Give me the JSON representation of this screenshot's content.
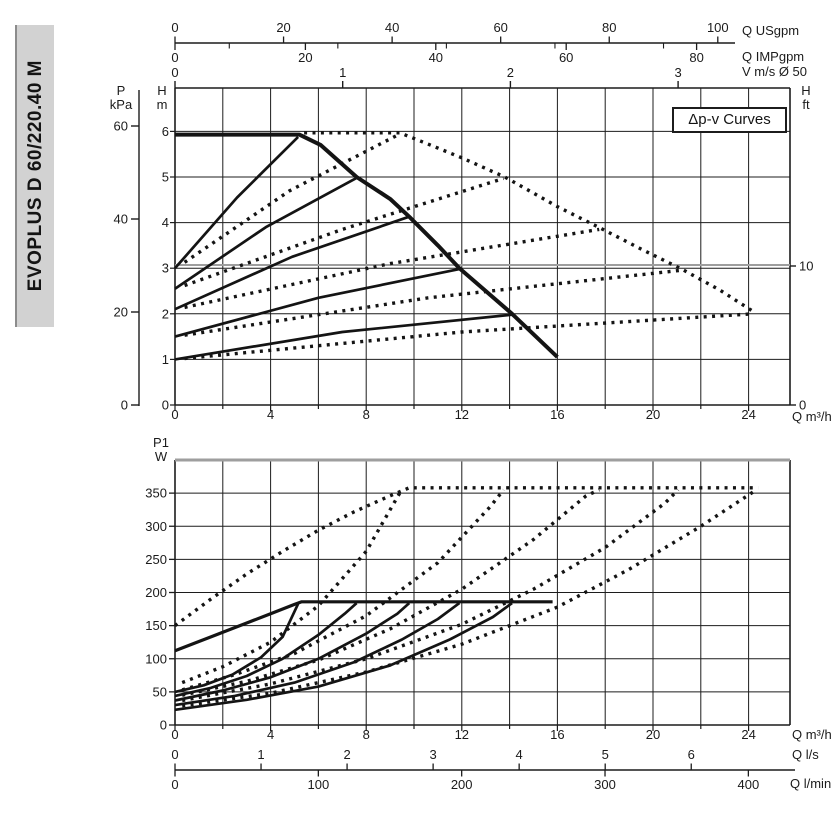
{
  "sidebar": {
    "label": "EVOPLUS D 60/220.40 M"
  },
  "top_chart": {
    "box_label": "Δp-v Curves",
    "pressure_axis_title_1": "P",
    "pressure_axis_title_2": "kPa",
    "head_axis_title_1": "H",
    "head_axis_title_2": "m",
    "right_axis_title_1": "H",
    "right_axis_title_2": "ft",
    "flow_axis_title": "Q m³/h",
    "usgpm_title": "Q USgpm",
    "impgpm_title": "Q IMPgpm",
    "velocity_title": "V m/s Ø 50"
  },
  "bottom_chart": {
    "power_axis_title_1": "P1",
    "power_axis_title_2": "W",
    "flow_axis_title": "Q m³/h",
    "ls_title": "Q l/s",
    "lmin_title": "Q l/min"
  },
  "chart_data": [
    {
      "type": "line",
      "name": "head-flow-curves",
      "title": "Δp-v Curves",
      "xlabel": "Q m³/h",
      "ylabel": "H m",
      "x_range": [
        0,
        25.7
      ],
      "y_range": [
        0,
        6.95
      ],
      "x_grid_step": 2,
      "x_ticks_labeled": [
        0,
        4,
        8,
        12,
        16,
        20,
        24
      ],
      "y_ticks": [
        0,
        1,
        2,
        3,
        4,
        5,
        6
      ],
      "kpa_ticks": [
        0,
        20,
        40,
        60
      ],
      "ft_ticks": [
        0,
        10
      ],
      "ft_line_h": 3.07,
      "usgpm_ticks": [
        0,
        20,
        40,
        60,
        80,
        100
      ],
      "usgpm_minor_ticks": [
        10,
        30,
        50,
        70,
        90
      ],
      "impgpm_ticks": [
        0,
        20,
        40,
        60,
        80
      ],
      "v_ticks": [
        0,
        1,
        2,
        3
      ],
      "series": [
        {
          "name": "max-curve-single",
          "style": "solid",
          "width": 4,
          "points": [
            [
              0,
              5.93
            ],
            [
              5.2,
              5.93
            ],
            [
              6.1,
              5.7
            ],
            [
              7.6,
              5.0
            ],
            [
              9.0,
              4.52
            ],
            [
              9.8,
              4.13
            ],
            [
              11.0,
              3.5
            ],
            [
              11.9,
              3.0
            ],
            [
              13.0,
              2.5
            ],
            [
              14.1,
              2.0
            ],
            [
              15.1,
              1.5
            ],
            [
              16,
              1.05
            ]
          ]
        },
        {
          "name": "dpv-setpoint-1-single",
          "style": "solid",
          "width": 2.7,
          "points": [
            [
              0,
              3.0
            ],
            [
              2.6,
              4.55
            ],
            [
              5.15,
              5.88
            ]
          ]
        },
        {
          "name": "dpv-setpoint-2-single",
          "style": "solid",
          "width": 2.7,
          "points": [
            [
              0,
              2.55
            ],
            [
              3.8,
              3.9
            ],
            [
              7.6,
              4.98
            ]
          ]
        },
        {
          "name": "dpv-setpoint-3-single",
          "style": "solid",
          "width": 2.7,
          "points": [
            [
              0,
              2.1
            ],
            [
              4.9,
              3.25
            ],
            [
              9.8,
              4.13
            ]
          ]
        },
        {
          "name": "dpv-setpoint-4-single",
          "style": "solid",
          "width": 2.7,
          "points": [
            [
              0,
              1.5
            ],
            [
              6,
              2.35
            ],
            [
              11.9,
              2.98
            ]
          ]
        },
        {
          "name": "dpv-setpoint-5-single",
          "style": "solid",
          "width": 2.7,
          "points": [
            [
              0,
              1.0
            ],
            [
              7,
              1.6
            ],
            [
              14.1,
              1.98
            ]
          ]
        },
        {
          "name": "max-curve-parallel",
          "style": "dotted",
          "width": 3.4,
          "points": [
            [
              5.4,
              5.97
            ],
            [
              9.4,
              5.97
            ],
            [
              10.6,
              5.72
            ],
            [
              12.0,
              5.42
            ],
            [
              13.8,
              5.0
            ],
            [
              16.0,
              4.35
            ],
            [
              17.8,
              3.88
            ],
            [
              19.5,
              3.42
            ],
            [
              21.2,
              2.98
            ],
            [
              22.8,
              2.52
            ],
            [
              24.25,
              2.03
            ]
          ]
        },
        {
          "name": "dpv-setpoint-1-parallel",
          "style": "dotted",
          "width": 3.4,
          "points": [
            [
              0.4,
              3.13
            ],
            [
              4.8,
              4.7
            ],
            [
              9.35,
              5.93
            ]
          ]
        },
        {
          "name": "dpv-setpoint-2-parallel",
          "style": "dotted",
          "width": 3.4,
          "points": [
            [
              0.4,
              2.62
            ],
            [
              7,
              3.85
            ],
            [
              13.75,
              4.97
            ]
          ]
        },
        {
          "name": "dpv-setpoint-3-parallel",
          "style": "dotted",
          "width": 3.4,
          "points": [
            [
              0.4,
              2.14
            ],
            [
              9,
              3.1
            ],
            [
              17.75,
              3.85
            ]
          ]
        },
        {
          "name": "dpv-setpoint-4-parallel",
          "style": "dotted",
          "width": 3.4,
          "points": [
            [
              0.4,
              1.53
            ],
            [
              10.6,
              2.35
            ],
            [
              21.1,
              2.95
            ]
          ]
        },
        {
          "name": "dpv-setpoint-5-parallel",
          "style": "dotted",
          "width": 3.4,
          "points": [
            [
              0.4,
              1.02
            ],
            [
              12,
              1.6
            ],
            [
              24.2,
              2.0
            ]
          ]
        }
      ]
    },
    {
      "type": "line",
      "name": "power-flow-curves",
      "xlabel": "Q m³/h",
      "ylabel": "P1 W",
      "x_range": [
        0,
        25.7
      ],
      "y_range": [
        0,
        400
      ],
      "x_grid_step": 2,
      "x_ticks_labeled": [
        0,
        4,
        8,
        12,
        16,
        20,
        24
      ],
      "y_ticks": [
        0,
        50,
        100,
        150,
        200,
        250,
        300,
        350
      ],
      "ls_ticks": [
        0,
        1,
        2,
        3,
        4,
        5,
        6
      ],
      "lmin_ticks": [
        0,
        100,
        200,
        300,
        400
      ],
      "series": [
        {
          "name": "power-max-single",
          "style": "solid",
          "width": 3.2,
          "points": [
            [
              0,
              112
            ],
            [
              1,
              126
            ],
            [
              2,
              140
            ],
            [
              3,
              154
            ],
            [
              4,
              168
            ],
            [
              5,
              182
            ],
            [
              5.3,
              186
            ],
            [
              15.8,
              186
            ]
          ]
        },
        {
          "name": "power-dpv-1-single",
          "style": "solid",
          "width": 2.7,
          "points": [
            [
              0,
              50
            ],
            [
              1.2,
              60
            ],
            [
              2.4,
              76
            ],
            [
              3.6,
              102
            ],
            [
              4.5,
              133
            ],
            [
              5.15,
              183
            ]
          ]
        },
        {
          "name": "power-dpv-2-single",
          "style": "solid",
          "width": 2.7,
          "points": [
            [
              0,
              44
            ],
            [
              1.5,
              56
            ],
            [
              3,
              74
            ],
            [
              4.5,
              100
            ],
            [
              6,
              136
            ],
            [
              7.1,
              168
            ],
            [
              7.6,
              184
            ]
          ]
        },
        {
          "name": "power-dpv-3-single",
          "style": "solid",
          "width": 2.7,
          "points": [
            [
              0,
              37
            ],
            [
              2,
              52
            ],
            [
              4,
              72
            ],
            [
              6,
              100
            ],
            [
              8,
              138
            ],
            [
              9.3,
              168
            ],
            [
              9.8,
              184
            ]
          ]
        },
        {
          "name": "power-dpv-4-single",
          "style": "solid",
          "width": 2.7,
          "points": [
            [
              0,
              30
            ],
            [
              2.5,
              44
            ],
            [
              5,
              64
            ],
            [
              7.5,
              95
            ],
            [
              9.5,
              129
            ],
            [
              11,
              160
            ],
            [
              11.9,
              184
            ]
          ]
        },
        {
          "name": "power-dpv-5-single",
          "style": "solid",
          "width": 2.7,
          "points": [
            [
              0,
              23
            ],
            [
              3,
              38
            ],
            [
              6,
              58
            ],
            [
              9,
              90
            ],
            [
              11.5,
              129
            ],
            [
              13.3,
              163
            ],
            [
              14.1,
              184
            ]
          ]
        },
        {
          "name": "power-max-parallel",
          "style": "dotted",
          "width": 3.4,
          "points": [
            [
              0,
              150
            ],
            [
              1.5,
              190
            ],
            [
              3,
              228
            ],
            [
              4.5,
              262
            ],
            [
              6,
              294
            ],
            [
              7.5,
              322
            ],
            [
              9,
              346
            ],
            [
              9.8,
              358
            ],
            [
              24.4,
              358
            ]
          ]
        },
        {
          "name": "power-dpv-1-parallel",
          "style": "dotted",
          "width": 3.4,
          "points": [
            [
              0.3,
              64
            ],
            [
              2,
              88
            ],
            [
              4,
              125
            ],
            [
              6,
              180
            ],
            [
              8,
              262
            ],
            [
              9.4,
              350
            ]
          ]
        },
        {
          "name": "power-dpv-2-parallel",
          "style": "dotted",
          "width": 3.4,
          "points": [
            [
              0.3,
              53
            ],
            [
              2.5,
              76
            ],
            [
              5,
              108
            ],
            [
              8,
              165
            ],
            [
              11,
              245
            ],
            [
              13.2,
              330
            ],
            [
              13.75,
              355
            ]
          ]
        },
        {
          "name": "power-dpv-3-parallel",
          "style": "dotted",
          "width": 3.4,
          "points": [
            [
              0.3,
              45
            ],
            [
              3,
              66
            ],
            [
              6,
              98
            ],
            [
              9,
              145
            ],
            [
              12,
              205
            ],
            [
              15,
              280
            ],
            [
              17.2,
              346
            ],
            [
              17.75,
              355
            ]
          ]
        },
        {
          "name": "power-dpv-4-parallel",
          "style": "dotted",
          "width": 3.4,
          "points": [
            [
              0.3,
              37
            ],
            [
              4,
              62
            ],
            [
              8,
              100
            ],
            [
              12,
              152
            ],
            [
              15,
              205
            ],
            [
              18,
              268
            ],
            [
              20.5,
              335
            ],
            [
              21.05,
              355
            ]
          ]
        },
        {
          "name": "power-dpv-5-parallel",
          "style": "dotted",
          "width": 3.4,
          "points": [
            [
              0.3,
              29
            ],
            [
              4,
              48
            ],
            [
              8,
              80
            ],
            [
              12,
              122
            ],
            [
              16,
              178
            ],
            [
              19,
              235
            ],
            [
              22,
              300
            ],
            [
              24.2,
              352
            ]
          ]
        }
      ]
    }
  ]
}
